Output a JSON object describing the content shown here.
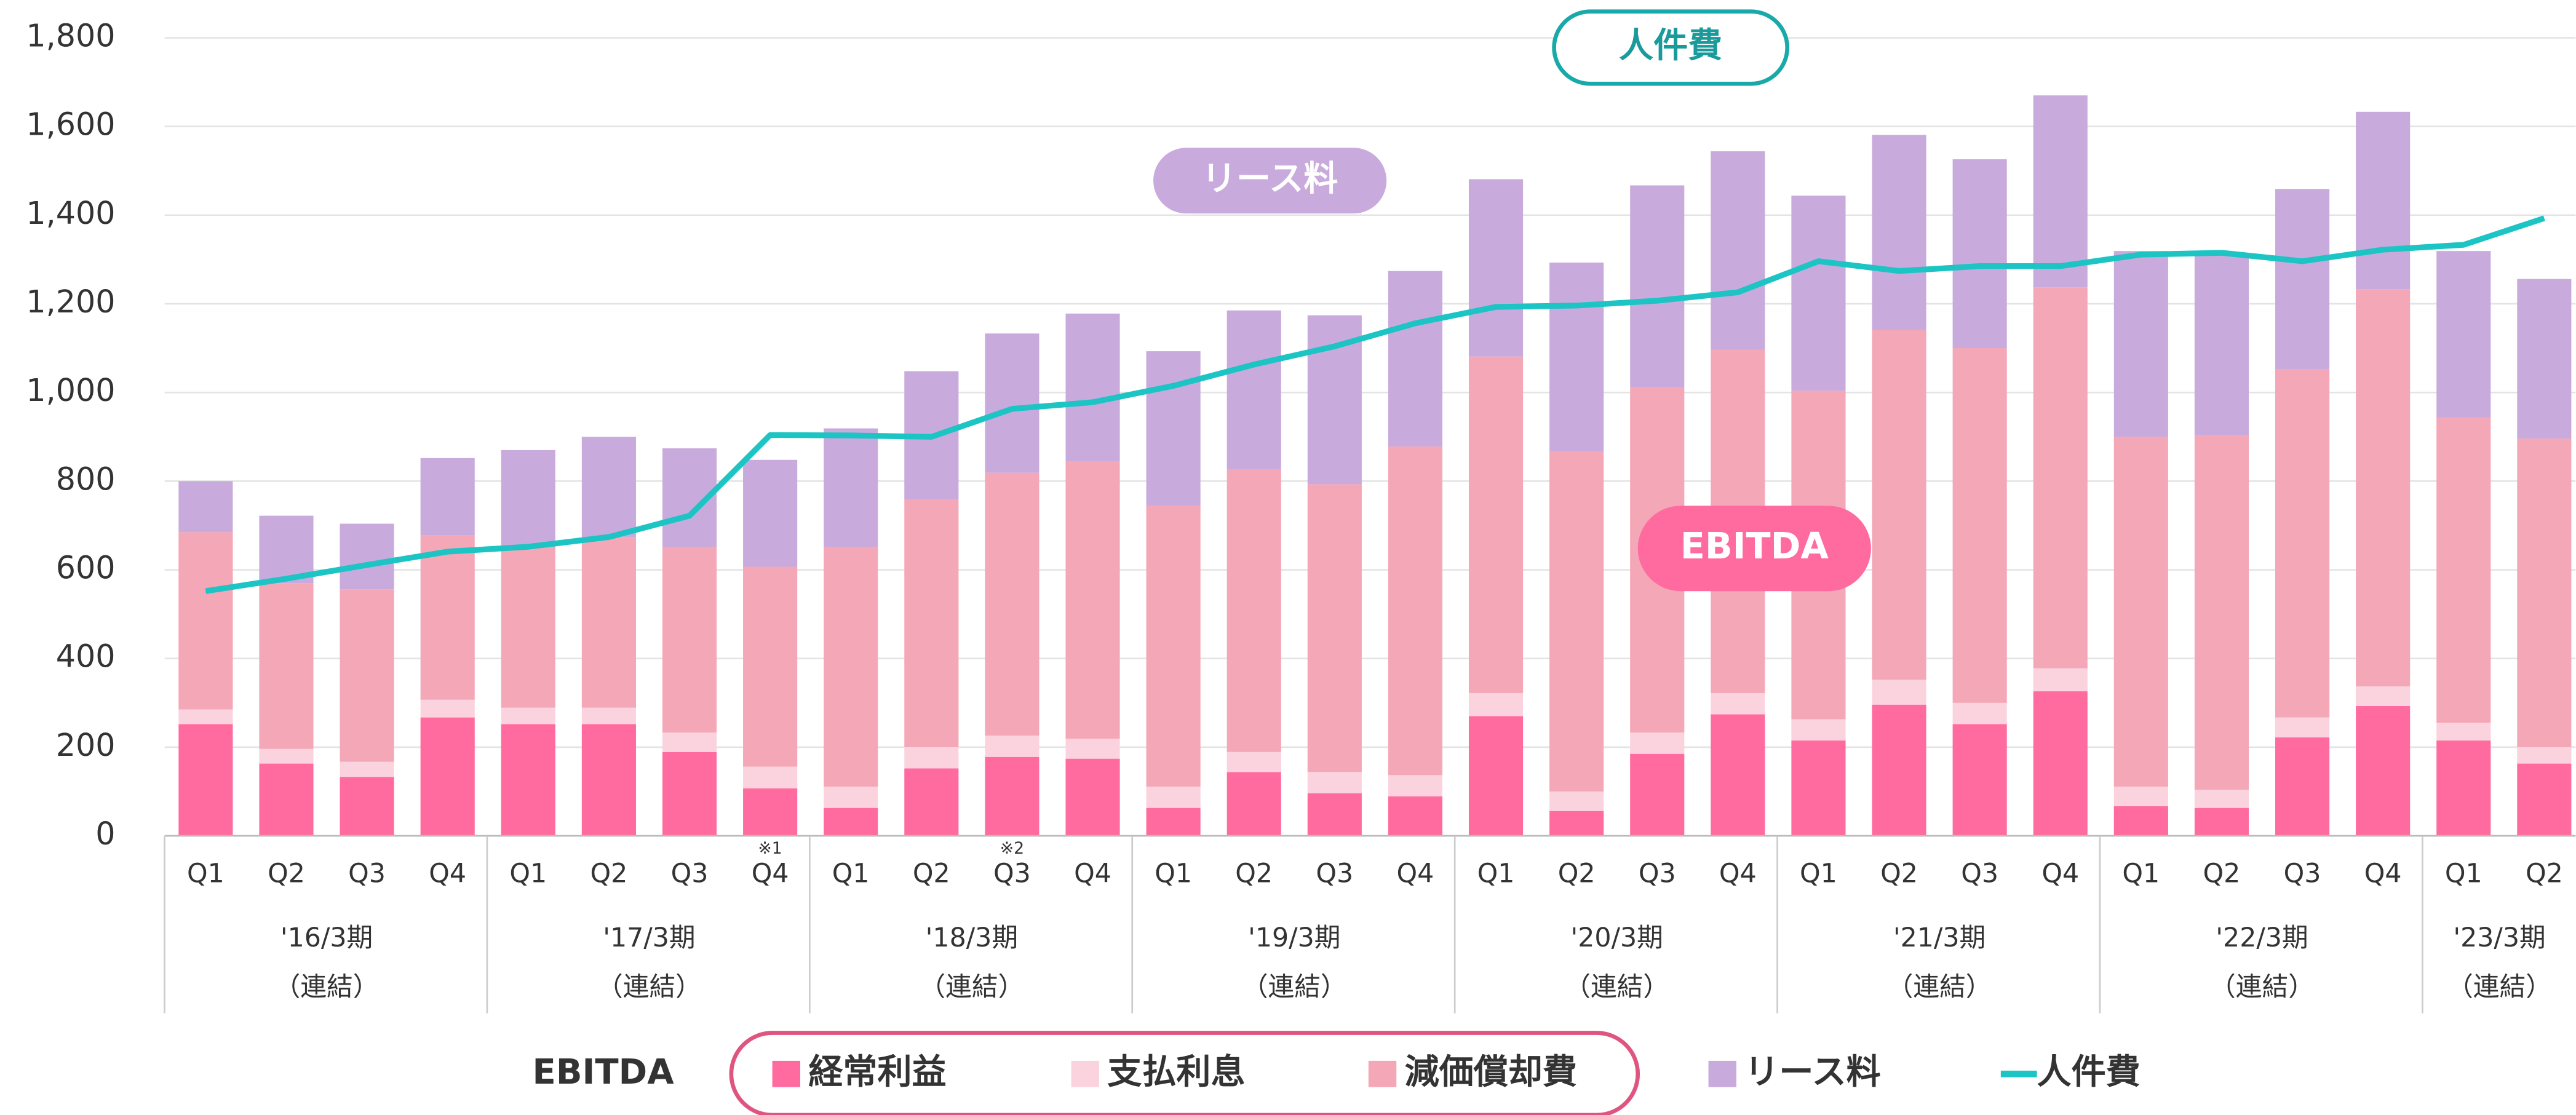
{
  "chart_data": {
    "type": "stacked-bar-line",
    "categories": [
      "Q1",
      "Q2",
      "Q3",
      "Q4",
      "Q1",
      "Q2",
      "Q3",
      "Q4",
      "Q1",
      "Q2",
      "Q3",
      "Q4",
      "Q1",
      "Q2",
      "Q3",
      "Q4",
      "Q1",
      "Q2",
      "Q3",
      "Q4",
      "Q1",
      "Q2",
      "Q3",
      "Q4",
      "Q1",
      "Q2",
      "Q3",
      "Q4",
      "Q1",
      "Q2"
    ],
    "category_notes": [
      null,
      null,
      null,
      null,
      null,
      null,
      null,
      "※1",
      null,
      null,
      "※2",
      null,
      null,
      null,
      null,
      null,
      null,
      null,
      null,
      null,
      null,
      null,
      null,
      null,
      null,
      null,
      null,
      null,
      null,
      null
    ],
    "groups": [
      {
        "label": "'16/3期",
        "sub": "（連結）"
      },
      {
        "label": "'17/3期",
        "sub": "（連結）"
      },
      {
        "label": "'18/3期",
        "sub": "（連結）"
      },
      {
        "label": "'19/3期",
        "sub": "（連結）"
      },
      {
        "label": "'20/3期",
        "sub": "（連結）"
      },
      {
        "label": "'21/3期",
        "sub": "（連結）"
      },
      {
        "label": "'22/3期",
        "sub": "（連結）"
      },
      {
        "label": "'23/3期",
        "sub": "（連結）"
      }
    ],
    "series": [
      {
        "name": "経常利益",
        "color": "#ff6b9e",
        "values": [
          252,
          163,
          133,
          267,
          252,
          252,
          189,
          107,
          63,
          152,
          178,
          174,
          63,
          144,
          96,
          89,
          270,
          56,
          185,
          274,
          215,
          296,
          252,
          326,
          67,
          63,
          222,
          293,
          215,
          163
        ]
      },
      {
        "name": "支払利息",
        "color": "#fbd3de",
        "values": [
          33,
          33,
          34,
          40,
          37,
          37,
          44,
          49,
          48,
          48,
          48,
          45,
          48,
          45,
          48,
          48,
          52,
          44,
          48,
          48,
          48,
          56,
          48,
          52,
          44,
          41,
          45,
          44,
          40,
          37
        ]
      },
      {
        "name": "減価償却費",
        "color": "#f4a7b6",
        "values": [
          400,
          374,
          389,
          371,
          363,
          385,
          419,
          451,
          541,
          559,
          593,
          625,
          633,
          637,
          649,
          741,
          759,
          767,
          778,
          774,
          741,
          789,
          800,
          859,
          789,
          800,
          785,
          896,
          689,
          696
        ]
      },
      {
        "name": "リース料",
        "color": "#c9aadc",
        "values": [
          115,
          152,
          148,
          174,
          218,
          226,
          222,
          241,
          267,
          289,
          314,
          334,
          349,
          359,
          381,
          396,
          400,
          426,
          456,
          448,
          440,
          440,
          426,
          433,
          419,
          411,
          407,
          400,
          375,
          360
        ]
      },
      {
        "name": "人件費",
        "color": "#1dc4c4",
        "type": "line",
        "values": [
          552,
          580,
          611,
          641,
          652,
          674,
          722,
          904,
          903,
          900,
          963,
          978,
          1015,
          1063,
          1104,
          1156,
          1193,
          1196,
          1207,
          1226,
          1296,
          1274,
          1285,
          1285,
          1311,
          1315,
          1296,
          1322,
          1333,
          1393
        ]
      }
    ],
    "ylim": [
      0,
      1800
    ],
    "yticks": [
      0,
      200,
      400,
      600,
      800,
      {
        "value": 1000,
        "label": "1,000"
      },
      {
        "value": 1200,
        "label": "1,200"
      },
      {
        "value": 1400,
        "label": "1,400"
      },
      {
        "value": 1600,
        "label": "1,600"
      },
      {
        "value": 1800,
        "label": "1,800"
      }
    ],
    "grid": true,
    "legend_title": "EBITDA",
    "callouts": [
      "人件費",
      "リース料",
      "EBITDA"
    ]
  }
}
